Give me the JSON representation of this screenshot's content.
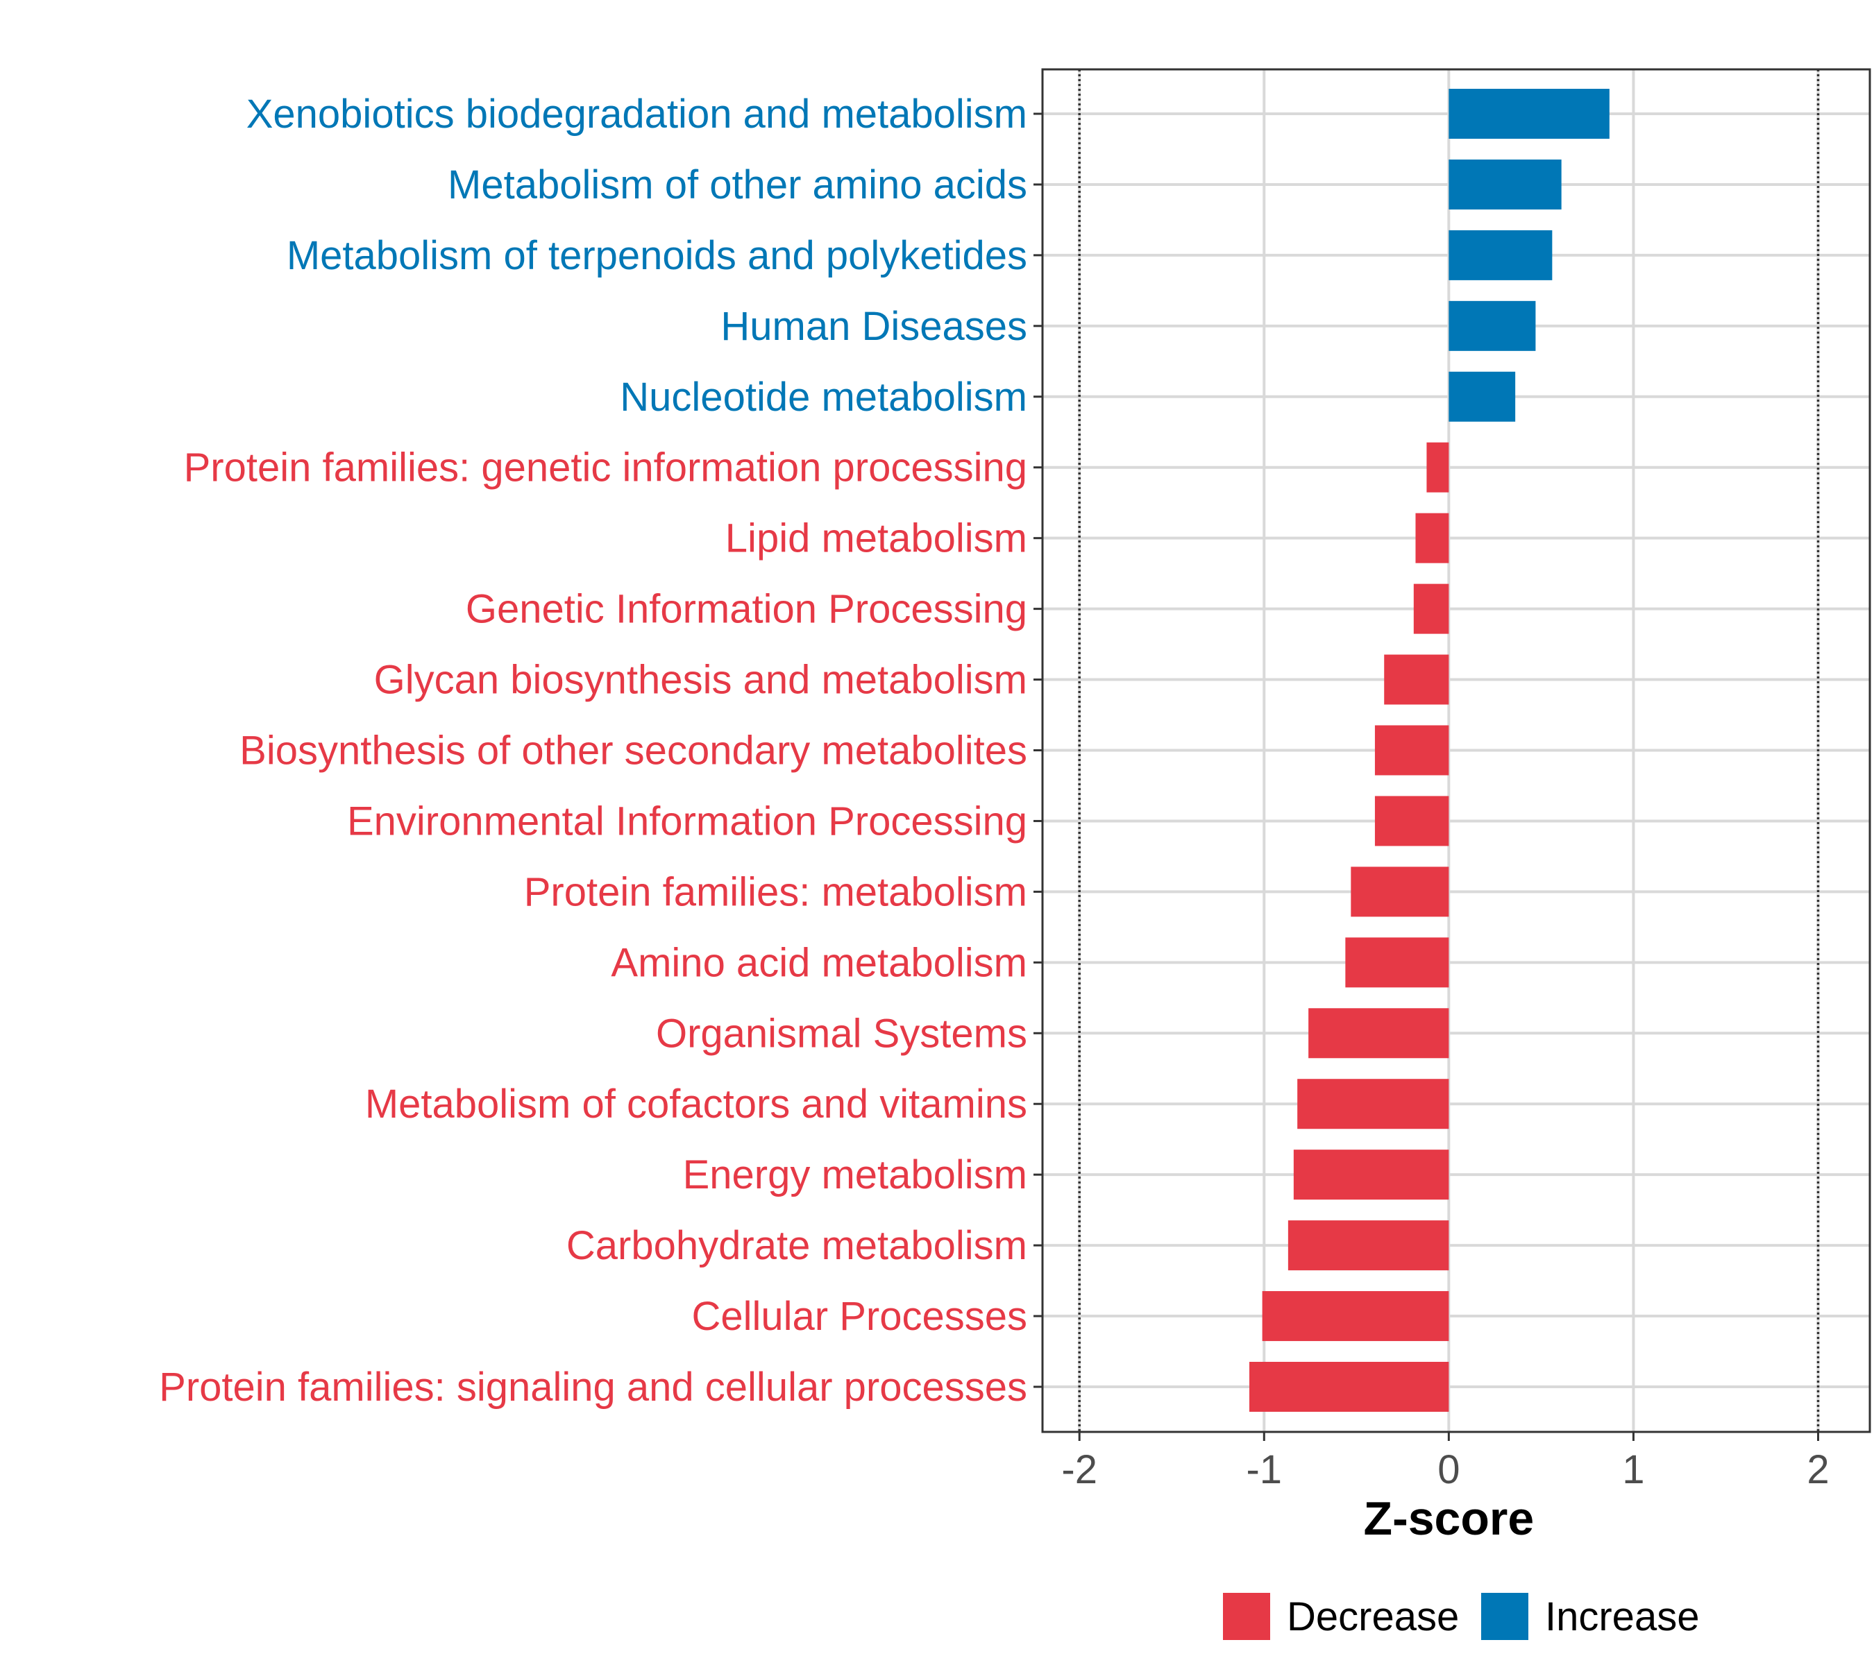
{
  "chart_data": {
    "type": "bar",
    "orientation": "horizontal",
    "xlabel": "Z-score",
    "xlim": [
      -2.2,
      2.28
    ],
    "x_ticks": [
      -2,
      -1,
      0,
      1,
      2
    ],
    "reference_lines": [
      -2,
      2
    ],
    "categories": [
      "Xenobiotics biodegradation and metabolism",
      "Metabolism of other amino acids",
      "Metabolism of terpenoids and polyketides",
      "Human Diseases",
      "Nucleotide metabolism",
      "Protein families: genetic information processing",
      "Lipid metabolism",
      "Genetic Information Processing",
      "Glycan biosynthesis and metabolism",
      "Biosynthesis of other secondary metabolites",
      "Environmental Information Processing",
      "Protein families: metabolism",
      "Amino acid metabolism",
      "Organismal Systems",
      "Metabolism of cofactors and vitamins",
      "Energy metabolism",
      "Carbohydrate metabolism",
      "Cellular Processes",
      "Protein families: signaling and cellular processes"
    ],
    "values": [
      0.87,
      0.61,
      0.56,
      0.47,
      0.36,
      -0.12,
      -0.18,
      -0.19,
      -0.35,
      -0.4,
      -0.4,
      -0.53,
      -0.56,
      -0.76,
      -0.82,
      -0.84,
      -0.87,
      -1.01,
      -1.08
    ],
    "groups": [
      "Increase",
      "Increase",
      "Increase",
      "Increase",
      "Increase",
      "Decrease",
      "Decrease",
      "Decrease",
      "Decrease",
      "Decrease",
      "Decrease",
      "Decrease",
      "Decrease",
      "Decrease",
      "Decrease",
      "Decrease",
      "Decrease",
      "Decrease",
      "Decrease"
    ],
    "legend": {
      "position": "bottom",
      "entries": [
        {
          "label": "Decrease",
          "color": "#e63946"
        },
        {
          "label": "Increase",
          "color": "#0077b6"
        }
      ]
    },
    "colors": {
      "Decrease": "#e63946",
      "Increase": "#0077b6"
    }
  }
}
